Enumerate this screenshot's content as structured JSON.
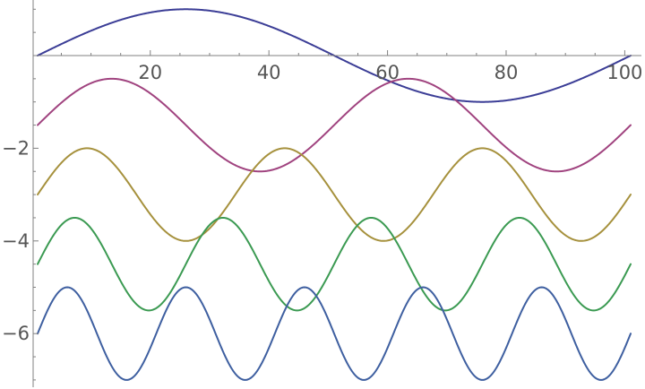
{
  "chart_data": {
    "type": "line",
    "title": "",
    "xlabel": "",
    "ylabel": "",
    "xlim": [
      0,
      101
    ],
    "ylim": [
      -7.2,
      1.2
    ],
    "grid": false,
    "x_ticks": [
      {
        "value": 20,
        "label": "20"
      },
      {
        "value": 40,
        "label": "40"
      },
      {
        "value": 60,
        "label": "60"
      },
      {
        "value": 80,
        "label": "80"
      },
      {
        "value": 100,
        "label": "100"
      }
    ],
    "y_ticks": [
      {
        "value": -2,
        "label": "−2"
      },
      {
        "value": -4,
        "label": "−4"
      },
      {
        "value": -6,
        "label": "−6"
      }
    ],
    "series": [
      {
        "color": "#3b3d96",
        "offset": 0.0,
        "amplitude": 1.0,
        "period": 100,
        "phase": 0.0
      },
      {
        "color": "#a0437f",
        "offset": -1.5,
        "amplitude": 1.0,
        "period": 50,
        "phase": 0.0
      },
      {
        "color": "#a6913d",
        "offset": -3.0,
        "amplitude": 1.0,
        "period": 33.33,
        "phase": 0.0
      },
      {
        "color": "#3b9a52",
        "offset": -4.5,
        "amplitude": 1.0,
        "period": 25,
        "phase": 0.0
      },
      {
        "color": "#3e5fa0",
        "offset": -6.0,
        "amplitude": 1.0,
        "period": 20,
        "phase": 0.0
      }
    ]
  }
}
